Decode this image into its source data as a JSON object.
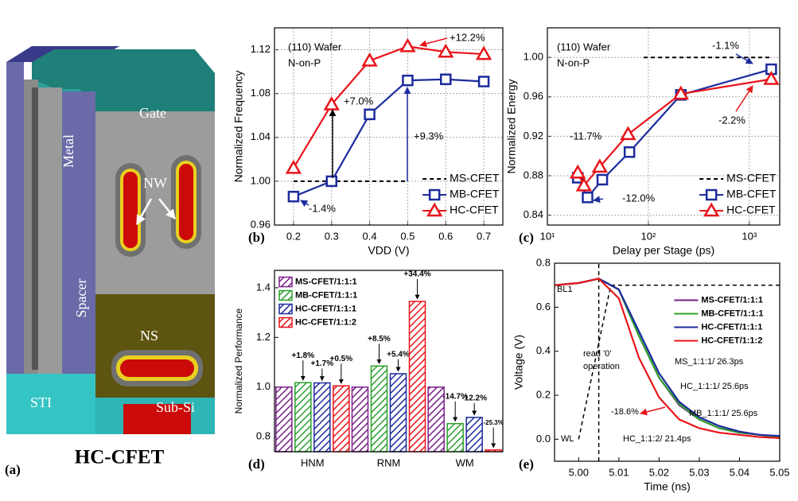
{
  "figure_a": {
    "panel_label": "(a)",
    "caption": "HC-CFET",
    "labels": {
      "gate": "Gate",
      "metal": "Metal",
      "nw": "NW",
      "spacer": "Spacer",
      "ns": "NS",
      "sti": "STI",
      "sub_si": "Sub-Si"
    }
  },
  "chart_data": [
    {
      "type": "line",
      "panel_label": "(b)",
      "x_label": "VDD (V)",
      "y_label": "Normalized Frequency",
      "x": [
        0.2,
        0.3,
        0.4,
        0.5,
        0.6,
        0.7
      ],
      "xlim": [
        0.15,
        0.75
      ],
      "xticks": [
        0.2,
        0.3,
        0.4,
        0.5,
        0.6,
        0.7
      ],
      "ylim": [
        0.96,
        1.14
      ],
      "yticks": [
        0.96,
        {
          "value": 1,
          "label": "1.00"
        },
        1.04,
        1.08,
        1.12
      ],
      "grid": true,
      "legend": "lower right",
      "series": [
        {
          "name": "MS-CFET",
          "color": "#000000",
          "dash": true,
          "marker": "none",
          "values": [
            1,
            1,
            1,
            1,
            null,
            null
          ]
        },
        {
          "name": "MB-CFET",
          "color": "#1c2b9c",
          "marker": "square",
          "values": [
            0.986,
            1.0,
            1.061,
            1.092,
            1.093,
            1.091
          ]
        },
        {
          "name": "HC-CFET",
          "color": "#e8141a",
          "marker": "triangle",
          "values": [
            1.012,
            1.07,
            1.11,
            1.123,
            1.118,
            1.116
          ]
        }
      ],
      "annotations": [
        {
          "text": "(110) Wafer",
          "color": "#000000"
        },
        {
          "text": "N-on-P",
          "color": "#000000"
        },
        {
          "text": "+7.0%",
          "color": "#000000"
        },
        {
          "text": "+9.3%",
          "color": "#1c2b9c"
        },
        {
          "text": "-1.4%",
          "color": "#1c2b9c"
        },
        {
          "text": "+12.2%",
          "color": "#e8141a"
        }
      ]
    },
    {
      "type": "line",
      "panel_label": "(c)",
      "x_label": "Delay per Stage (ps)",
      "y_label": "Normalized Energy",
      "xscale": "log",
      "xlim": [
        10,
        2000
      ],
      "xticks": [
        {
          "value": 10,
          "label": "10¹"
        },
        {
          "value": 100,
          "label": "10²"
        },
        {
          "value": 1000,
          "label": "10³"
        }
      ],
      "ylim": [
        0.83,
        1.03
      ],
      "yticks": [
        0.84,
        0.88,
        0.92,
        0.96,
        {
          "value": 1,
          "label": "1.00"
        }
      ],
      "grid": true,
      "legend": "lower right",
      "series": [
        {
          "name": "MS-CFET",
          "color": "#000000",
          "dash": true,
          "marker": "none",
          "x": [
            90,
            1650
          ],
          "values": [
            1,
            1
          ]
        },
        {
          "name": "MB-CFET",
          "color": "#1c2b9c",
          "marker": "square",
          "x": [
            20,
            25,
            35,
            65,
            210,
            1650
          ],
          "values": [
            0.878,
            0.858,
            0.876,
            0.904,
            0.962,
            0.988
          ]
        },
        {
          "name": "HC-CFET",
          "color": "#e8141a",
          "marker": "triangle",
          "x": [
            20,
            23,
            33,
            63,
            210,
            1650
          ],
          "values": [
            0.883,
            0.87,
            0.889,
            0.922,
            0.963,
            0.978
          ]
        }
      ],
      "annotations": [
        {
          "text": "(110) Wafer",
          "color": "#000000"
        },
        {
          "text": "N-on-P",
          "color": "#000000"
        },
        {
          "text": "-1.1%",
          "color": "#1c2b9c"
        },
        {
          "text": "-11.7%",
          "color": "#e8141a"
        },
        {
          "text": "-12.0%",
          "color": "#1c2b9c"
        },
        {
          "text": "-2.2%",
          "color": "#e8141a"
        }
      ]
    },
    {
      "type": "bar",
      "panel_label": "(d)",
      "y_label": "Normalized Performance",
      "categories": [
        "HNM",
        "RNM",
        "WM"
      ],
      "ylim": [
        0.74,
        1.47
      ],
      "yticks": [
        0.8,
        {
          "value": 1,
          "label": "1.0"
        },
        1.2,
        1.4
      ],
      "grid": false,
      "legend": "upper left",
      "hatch": true,
      "series": [
        {
          "name": "MS-CFET/1:1:1",
          "color": "#7a1f8a",
          "values": [
            1,
            1,
            1
          ]
        },
        {
          "name": "MB-CFET/1:1:1",
          "color": "#2ca02c",
          "values": [
            1.018,
            1.085,
            0.853
          ],
          "change_labels": [
            "+1.8%",
            "+8.5%",
            "-14.7%"
          ]
        },
        {
          "name": "HC-CFET/1:1:1",
          "color": "#1c2b9c",
          "values": [
            1.017,
            1.054,
            0.878
          ],
          "change_labels": [
            "+1.7%",
            "+5.4%",
            "-12.2%"
          ]
        },
        {
          "name": "HC-CFET/1:1:2",
          "color": "#e8141a",
          "values": [
            1.005,
            1.345,
            0.747
          ],
          "change_labels": [
            "+0.5%",
            "+34.4%",
            "-25.3%"
          ]
        }
      ]
    },
    {
      "type": "line",
      "panel_label": "(e)",
      "x_label": "Time (ns)",
      "y_label": "Voltage (V)",
      "x": [
        4.994,
        5.0,
        5.005,
        5.01,
        5.015,
        5.02,
        5.025,
        5.03,
        5.035,
        5.04,
        5.045,
        5.05
      ],
      "xlim": [
        4.994,
        5.05
      ],
      "xticks": [
        {
          "value": 5,
          "label": "5.00"
        },
        5.01,
        5.02,
        5.03,
        5.04,
        5.05
      ],
      "ylim": [
        -0.1,
        0.8
      ],
      "yticks": [
        {
          "value": 0,
          "label": "0.0"
        },
        0.2,
        0.4,
        0.6,
        0.8
      ],
      "grid": false,
      "legend": "upper right",
      "series": [
        {
          "name": "MS-CFET/1:1:1",
          "color": "#7a1f8a",
          "marker": "none",
          "values": [
            0.7,
            0.71,
            0.73,
            0.68,
            0.47,
            0.28,
            0.155,
            0.09,
            0.05,
            0.03,
            0.02,
            0.01
          ]
        },
        {
          "name": "MB-CFET/1:1:1",
          "color": "#2ca02c",
          "marker": "none",
          "values": [
            0.7,
            0.71,
            0.73,
            0.68,
            0.47,
            0.28,
            0.16,
            0.09,
            0.05,
            0.03,
            0.02,
            0.01
          ]
        },
        {
          "name": "HC-CFET/1:1:1",
          "color": "#1c2b9c",
          "marker": "none",
          "values": [
            0.7,
            0.71,
            0.73,
            0.68,
            0.49,
            0.3,
            0.17,
            0.1,
            0.06,
            0.035,
            0.02,
            0.015
          ]
        },
        {
          "name": "HC-CFET/1:1:2",
          "color": "#e8141a",
          "marker": "none",
          "values": [
            0.7,
            0.71,
            0.73,
            0.64,
            0.37,
            0.19,
            0.09,
            0.05,
            0.03,
            0.02,
            0.01,
            0.005
          ]
        }
      ],
      "guides": [
        {
          "label": "WL",
          "x": [
            5.0,
            5.008,
            5.05
          ],
          "values": [
            0,
            0.7,
            0.7
          ]
        },
        {
          "x": [
            5.005,
            5.005
          ],
          "values": [
            -0.1,
            0.8
          ]
        }
      ],
      "annotations": [
        {
          "text": "BL1",
          "color": "#000000"
        },
        {
          "text": "read '0'",
          "color": "#000000"
        },
        {
          "text": "operation",
          "color": "#000000"
        },
        {
          "text": "MS_1:1:1/ 26.3ps",
          "color": "#000000"
        },
        {
          "text": "HC_1:1:1/ 25.6ps",
          "color": "#000000"
        },
        {
          "text": "MB_1:1:1/ 25.6ps",
          "color": "#000000"
        },
        {
          "text": "HC_1:1:2/ 21.4ps",
          "color": "#000000"
        },
        {
          "text": "-18.6%",
          "color": "#e8141a"
        }
      ]
    }
  ]
}
